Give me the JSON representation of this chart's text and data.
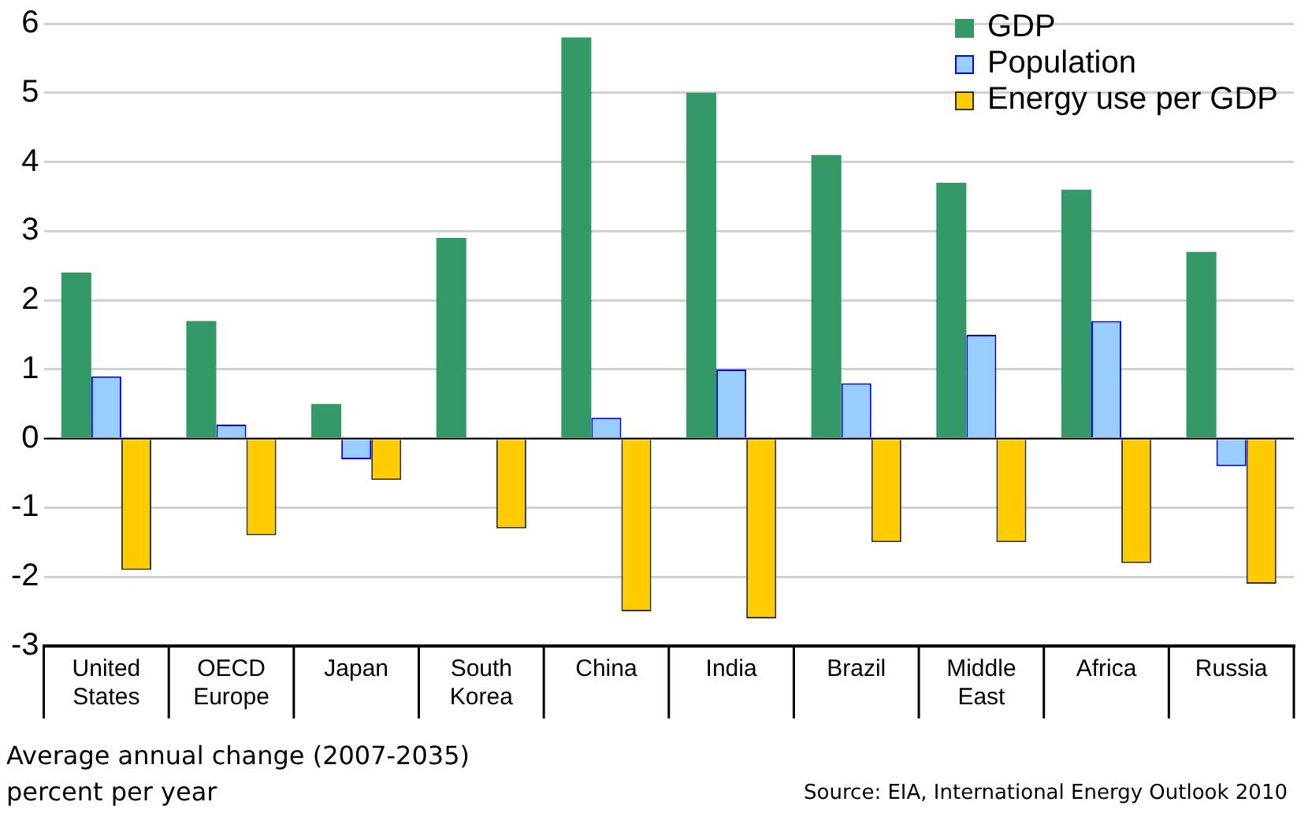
{
  "chart_data": {
    "type": "bar",
    "categories": [
      "United States",
      "OECD Europe",
      "Japan",
      "South Korea",
      "China",
      "India",
      "Brazil",
      "Middle East",
      "Africa",
      "Russia"
    ],
    "series": [
      {
        "name": "GDP",
        "color": "#339966",
        "values": [
          2.4,
          1.7,
          0.5,
          2.9,
          5.8,
          5.0,
          4.1,
          3.7,
          3.6,
          2.7
        ]
      },
      {
        "name": "Population",
        "color": "#99ccff",
        "values": [
          0.9,
          0.2,
          -0.3,
          0,
          0.3,
          1.0,
          0.8,
          1.5,
          1.7,
          -0.4
        ]
      },
      {
        "name": "Energy use per GDP",
        "color": "#ffcc00",
        "values": [
          -1.9,
          -1.4,
          -0.6,
          -1.3,
          -2.5,
          -2.6,
          -1.5,
          -1.5,
          -1.8,
          -2.1
        ]
      }
    ],
    "ylim": [
      -3,
      6
    ],
    "yticks": [
      -3,
      -2,
      -1,
      0,
      1,
      2,
      3,
      4,
      5,
      6
    ],
    "grid": "y",
    "legend": "top right",
    "annotations": [
      "Average annual change (2007-2035)",
      "percent per year",
      "Source:  EIA, International Energy Outlook 2010"
    ]
  }
}
